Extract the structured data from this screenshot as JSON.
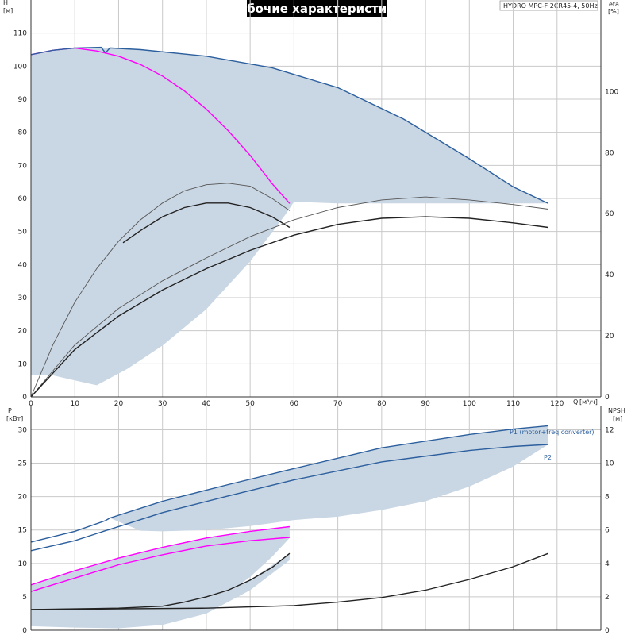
{
  "title": "Рабочие характеристики",
  "model_label": "HYDRO MPC-F 2CR45-4, 50Hz",
  "colors": {
    "envelope": "#c9d6e3",
    "line_blue": "#2c5f9e",
    "line_magenta": "#ff00ff",
    "line_black": "#222222",
    "line_grey": "#555555",
    "grid": "#c9c9c9"
  },
  "upper": {
    "h_axis": {
      "label": "H",
      "unit": "[м]"
    },
    "eta_axis": {
      "label": "eta",
      "unit": "[%]"
    },
    "q_axis": {
      "label": "Q",
      "unit": "[м³/ч]"
    },
    "h_ticks": [
      "0",
      "10",
      "20",
      "30",
      "40",
      "50",
      "60",
      "70",
      "80",
      "90",
      "100",
      "110"
    ],
    "eta_ticks": [
      "0",
      "20",
      "40",
      "60",
      "80",
      "100"
    ],
    "q_ticks": [
      "0",
      "10",
      "20",
      "30",
      "40",
      "50",
      "60",
      "70",
      "80",
      "90",
      "100",
      "110",
      "120"
    ]
  },
  "lower": {
    "p_axis": {
      "label": "P",
      "unit": "[кВт]"
    },
    "npsh_axis": {
      "label": "NPSH",
      "unit": "[м]"
    },
    "p_ticks": [
      "0",
      "5",
      "10",
      "15",
      "20",
      "25",
      "30"
    ],
    "npsh_ticks": [
      "0",
      "2",
      "4",
      "6",
      "8",
      "10",
      "12"
    ],
    "labels": {
      "p1": "P1 (motor+freq.converter)",
      "p2": "P2"
    }
  },
  "chart_data": [
    {
      "type": "line",
      "title": "Рабочие характеристики",
      "xlabel": "Q [м³/ч]",
      "ylabel": "H [м]",
      "y2label": "eta [%]",
      "xlim": [
        0,
        130
      ],
      "ylim": [
        0,
        120
      ],
      "y2lim": [
        0,
        130
      ],
      "grid": true,
      "envelope": {
        "upper": [
          [
            0,
            103.5
          ],
          [
            5,
            105
          ],
          [
            10,
            105.6
          ],
          [
            16,
            105.7
          ],
          [
            18,
            105.5
          ],
          [
            25,
            105
          ],
          [
            40,
            103
          ],
          [
            55,
            99.5
          ],
          [
            70,
            93.5
          ],
          [
            85,
            84
          ],
          [
            100,
            72
          ],
          [
            110,
            63.5
          ],
          [
            118,
            58.5
          ]
        ],
        "lower": [
          [
            118,
            58.5
          ],
          [
            70,
            58.5
          ],
          [
            60,
            59
          ],
          [
            58,
            55
          ],
          [
            50,
            41
          ],
          [
            40,
            26.5
          ],
          [
            30,
            15.5
          ],
          [
            22,
            8.5
          ],
          [
            15,
            3.5
          ],
          [
            10,
            5
          ],
          [
            5,
            6.5
          ],
          [
            0,
            6.5
          ]
        ]
      },
      "series": [
        {
          "name": "",
          "axis": "H",
          "color": "#ff00ff",
          "points": [
            [
              0,
              103.5
            ],
            [
              5,
              104.8
            ],
            [
              10,
              105.5
            ],
            [
              15,
              104.6
            ],
            [
              20,
              103
            ],
            [
              25,
              100.5
            ],
            [
              30,
              97
            ],
            [
              35,
              92.5
            ],
            [
              40,
              87
            ],
            [
              45,
              80.5
            ],
            [
              50,
              73
            ],
            [
              55,
              64.5
            ],
            [
              59,
              58.5
            ]
          ]
        },
        {
          "name": "",
          "axis": "H",
          "color": "#2c5f9e",
          "points": [
            [
              0,
              103.5
            ],
            [
              5,
              104.8
            ],
            [
              10,
              105.5
            ],
            [
              16,
              105.7
            ],
            [
              17,
              104
            ],
            [
              18,
              105.5
            ],
            [
              25,
              105
            ],
            [
              40,
              103
            ],
            [
              55,
              99.5
            ],
            [
              70,
              93.5
            ],
            [
              85,
              84
            ],
            [
              100,
              72
            ],
            [
              110,
              63.5
            ],
            [
              118,
              58.5
            ]
          ]
        },
        {
          "name": "",
          "axis": "eta",
          "color": "#555555",
          "points": [
            [
              0,
              0
            ],
            [
              5,
              17
            ],
            [
              10,
              31
            ],
            [
              15,
              42
            ],
            [
              20,
              51
            ],
            [
              25,
              58
            ],
            [
              30,
              63.5
            ],
            [
              35,
              67.5
            ],
            [
              40,
              69.5
            ],
            [
              45,
              70
            ],
            [
              50,
              69
            ],
            [
              55,
              65
            ],
            [
              59,
              61
            ]
          ]
        },
        {
          "name": "",
          "axis": "eta",
          "color": "#222222",
          "points": [
            [
              21,
              50.5
            ],
            [
              25,
              54.5
            ],
            [
              30,
              59
            ],
            [
              35,
              62
            ],
            [
              40,
              63.5
            ],
            [
              45,
              63.5
            ],
            [
              50,
              62
            ],
            [
              55,
              59
            ],
            [
              59,
              55.5
            ]
          ]
        },
        {
          "name": "",
          "axis": "eta",
          "color": "#555555",
          "points": [
            [
              0,
              0
            ],
            [
              10,
              17
            ],
            [
              20,
              29
            ],
            [
              30,
              38
            ],
            [
              40,
              45.5
            ],
            [
              50,
              52.5
            ],
            [
              60,
              58
            ],
            [
              70,
              62
            ],
            [
              80,
              64.5
            ],
            [
              90,
              65.5
            ],
            [
              100,
              64.5
            ],
            [
              110,
              63
            ],
            [
              118,
              61.5
            ]
          ]
        },
        {
          "name": "",
          "axis": "eta",
          "color": "#222222",
          "points": [
            [
              0,
              0
            ],
            [
              10,
              15.5
            ],
            [
              20,
              26.5
            ],
            [
              30,
              35
            ],
            [
              40,
              42
            ],
            [
              50,
              48
            ],
            [
              60,
              53
            ],
            [
              70,
              56.5
            ],
            [
              80,
              58.5
            ],
            [
              90,
              59
            ],
            [
              100,
              58.5
            ],
            [
              110,
              57
            ],
            [
              118,
              55.5
            ]
          ]
        }
      ]
    },
    {
      "type": "line",
      "xlabel": "Q [м³/ч]",
      "ylabel": "P [кВт]",
      "y2label": "NPSH [м]",
      "xlim": [
        0,
        130
      ],
      "ylim": [
        0,
        33.5
      ],
      "y2lim": [
        0,
        13.4
      ],
      "grid": true,
      "envelopes": [
        {
          "upper": [
            [
              18,
              16.8
            ],
            [
              30,
              19.3
            ],
            [
              45,
              21.8
            ],
            [
              60,
              24.2
            ],
            [
              80,
              27.3
            ],
            [
              100,
              29.3
            ],
            [
              110,
              30.1
            ],
            [
              118,
              30.6
            ]
          ],
          "lower": [
            [
              118,
              27.8
            ],
            [
              110,
              24.5
            ],
            [
              100,
              21.5
            ],
            [
              90,
              19.3
            ],
            [
              80,
              18
            ],
            [
              70,
              17
            ],
            [
              60,
              16.5
            ],
            [
              50,
              15.6
            ],
            [
              40,
              15
            ],
            [
              30,
              14.8
            ],
            [
              25,
              14.9
            ],
            [
              18,
              16.8
            ]
          ]
        },
        {
          "upper": [
            [
              0,
              6.8
            ],
            [
              10,
              8.9
            ],
            [
              20,
              10.8
            ],
            [
              30,
              12.4
            ],
            [
              40,
              13.8
            ],
            [
              50,
              14.8
            ],
            [
              59,
              15.5
            ]
          ],
          "lower": [
            [
              59,
              13.8
            ],
            [
              55,
              11
            ],
            [
              50,
              8
            ],
            [
              45,
              5.5
            ],
            [
              40,
              3.5
            ],
            [
              35,
              2
            ],
            [
              30,
              1
            ],
            [
              25,
              0.8
            ],
            [
              15,
              1.2
            ],
            [
              5,
              2.5
            ],
            [
              0,
              3.2
            ]
          ]
        },
        {
          "upper": [
            [
              0,
              3.1
            ],
            [
              10,
              3.2
            ],
            [
              20,
              3.3
            ],
            [
              30,
              3.6
            ],
            [
              40,
              5
            ],
            [
              50,
              7.5
            ],
            [
              59,
              11.5
            ]
          ],
          "lower": [
            [
              59,
              10.5
            ],
            [
              50,
              6
            ],
            [
              40,
              2.5
            ],
            [
              30,
              0.8
            ],
            [
              20,
              0.3
            ],
            [
              10,
              0.4
            ],
            [
              0,
              0.6
            ]
          ]
        }
      ],
      "series": [
        {
          "name": "P1 (motor+freq.converter)",
          "axis": "P",
          "color": "#2c5f9e",
          "points": [
            [
              0,
              13.2
            ],
            [
              10,
              14.8
            ],
            [
              17,
              16.4
            ],
            [
              18,
              16.8
            ],
            [
              30,
              19.3
            ],
            [
              45,
              21.8
            ],
            [
              60,
              24.2
            ],
            [
              80,
              27.3
            ],
            [
              100,
              29.3
            ],
            [
              110,
              30.1
            ],
            [
              118,
              30.6
            ]
          ]
        },
        {
          "name": "P2",
          "axis": "P",
          "color": "#2c5f9e",
          "points": [
            [
              0,
              11.9
            ],
            [
              10,
              13.4
            ],
            [
              17,
              14.9
            ],
            [
              18,
              15.1
            ],
            [
              30,
              17.6
            ],
            [
              45,
              20.1
            ],
            [
              60,
              22.5
            ],
            [
              80,
              25.2
            ],
            [
              100,
              26.9
            ],
            [
              110,
              27.5
            ],
            [
              118,
              27.8
            ]
          ]
        },
        {
          "name": "",
          "axis": "P",
          "color": "#ff00ff",
          "points": [
            [
              0,
              6.8
            ],
            [
              10,
              8.9
            ],
            [
              20,
              10.8
            ],
            [
              30,
              12.4
            ],
            [
              40,
              13.8
            ],
            [
              50,
              14.8
            ],
            [
              59,
              15.5
            ]
          ]
        },
        {
          "name": "",
          "axis": "P",
          "color": "#ff00ff",
          "points": [
            [
              0,
              5.8
            ],
            [
              10,
              7.8
            ],
            [
              20,
              9.8
            ],
            [
              30,
              11.3
            ],
            [
              40,
              12.6
            ],
            [
              50,
              13.4
            ],
            [
              59,
              13.9
            ]
          ]
        },
        {
          "name": "",
          "axis": "P",
          "color": "#222222",
          "points": [
            [
              0,
              3.1
            ],
            [
              10,
              3.2
            ],
            [
              20,
              3.3
            ],
            [
              30,
              3.6
            ],
            [
              35,
              4.2
            ],
            [
              40,
              5
            ],
            [
              45,
              6
            ],
            [
              50,
              7.5
            ],
            [
              55,
              9.4
            ],
            [
              59,
              11.5
            ]
          ]
        },
        {
          "name": "",
          "axis": "P",
          "color": "#222222",
          "points": [
            [
              0,
              3.1
            ],
            [
              20,
              3.2
            ],
            [
              40,
              3.3
            ],
            [
              60,
              3.7
            ],
            [
              70,
              4.2
            ],
            [
              80,
              4.9
            ],
            [
              90,
              6
            ],
            [
              100,
              7.6
            ],
            [
              110,
              9.5
            ],
            [
              118,
              11.5
            ]
          ]
        }
      ]
    }
  ]
}
